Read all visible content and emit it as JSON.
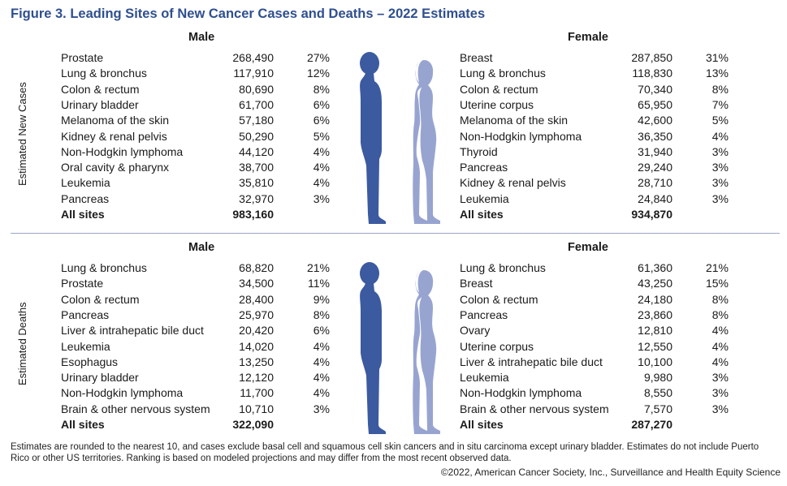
{
  "title": "Figure 3. Leading Sites of New Cancer Cases and Deaths – 2022 Estimates",
  "colors": {
    "male": "#3c5a9f",
    "female": "#98a4d0",
    "title": "#2f4f8f"
  },
  "chart_data": [
    {
      "type": "table",
      "label": "Estimated New Cases",
      "male": {
        "header": "Male",
        "rows": [
          {
            "site": "Prostate",
            "count": "268,490",
            "pct": "27%"
          },
          {
            "site": "Lung & bronchus",
            "count": "117,910",
            "pct": "12%"
          },
          {
            "site": "Colon & rectum",
            "count": "80,690",
            "pct": "8%"
          },
          {
            "site": "Urinary bladder",
            "count": "61,700",
            "pct": "6%"
          },
          {
            "site": "Melanoma of the skin",
            "count": "57,180",
            "pct": "6%"
          },
          {
            "site": "Kidney & renal pelvis",
            "count": "50,290",
            "pct": "5%"
          },
          {
            "site": "Non-Hodgkin lymphoma",
            "count": "44,120",
            "pct": "4%"
          },
          {
            "site": "Oral cavity & pharynx",
            "count": "38,700",
            "pct": "4%"
          },
          {
            "site": "Leukemia",
            "count": "35,810",
            "pct": "4%"
          },
          {
            "site": "Pancreas",
            "count": "32,970",
            "pct": "3%"
          }
        ],
        "total": {
          "site": "All sites",
          "count": "983,160"
        }
      },
      "female": {
        "header": "Female",
        "rows": [
          {
            "site": "Breast",
            "count": "287,850",
            "pct": "31%"
          },
          {
            "site": "Lung & bronchus",
            "count": "118,830",
            "pct": "13%"
          },
          {
            "site": "Colon & rectum",
            "count": "70,340",
            "pct": "8%"
          },
          {
            "site": "Uterine corpus",
            "count": "65,950",
            "pct": "7%"
          },
          {
            "site": "Melanoma of the skin",
            "count": "42,600",
            "pct": "5%"
          },
          {
            "site": "Non-Hodgkin lymphoma",
            "count": "36,350",
            "pct": "4%"
          },
          {
            "site": "Thyroid",
            "count": "31,940",
            "pct": "3%"
          },
          {
            "site": "Pancreas",
            "count": "29,240",
            "pct": "3%"
          },
          {
            "site": "Kidney & renal pelvis",
            "count": "28,710",
            "pct": "3%"
          },
          {
            "site": "Leukemia",
            "count": "24,840",
            "pct": "3%"
          }
        ],
        "total": {
          "site": "All sites",
          "count": "934,870"
        }
      }
    },
    {
      "type": "table",
      "label": "Estimated Deaths",
      "male": {
        "header": "Male",
        "rows": [
          {
            "site": "Lung & bronchus",
            "count": "68,820",
            "pct": "21%"
          },
          {
            "site": "Prostate",
            "count": "34,500",
            "pct": "11%"
          },
          {
            "site": "Colon & rectum",
            "count": "28,400",
            "pct": "9%"
          },
          {
            "site": "Pancreas",
            "count": "25,970",
            "pct": "8%"
          },
          {
            "site": "Liver & intrahepatic bile duct",
            "count": "20,420",
            "pct": "6%"
          },
          {
            "site": "Leukemia",
            "count": "14,020",
            "pct": "4%"
          },
          {
            "site": "Esophagus",
            "count": "13,250",
            "pct": "4%"
          },
          {
            "site": "Urinary bladder",
            "count": "12,120",
            "pct": "4%"
          },
          {
            "site": "Non-Hodgkin lymphoma",
            "count": "11,700",
            "pct": "4%"
          },
          {
            "site": "Brain & other nervous system",
            "count": "10,710",
            "pct": "3%"
          }
        ],
        "total": {
          "site": "All sites",
          "count": "322,090"
        }
      },
      "female": {
        "header": "Female",
        "rows": [
          {
            "site": "Lung & bronchus",
            "count": "61,360",
            "pct": "21%"
          },
          {
            "site": "Breast",
            "count": "43,250",
            "pct": "15%"
          },
          {
            "site": "Colon & rectum",
            "count": "24,180",
            "pct": "8%"
          },
          {
            "site": "Pancreas",
            "count": "23,860",
            "pct": "8%"
          },
          {
            "site": "Ovary",
            "count": "12,810",
            "pct": "4%"
          },
          {
            "site": "Uterine corpus",
            "count": "12,550",
            "pct": "4%"
          },
          {
            "site": "Liver & intrahepatic bile duct",
            "count": "10,100",
            "pct": "4%"
          },
          {
            "site": "Leukemia",
            "count": "9,980",
            "pct": "3%"
          },
          {
            "site": "Non-Hodgkin lymphoma",
            "count": "8,550",
            "pct": "3%"
          },
          {
            "site": "Brain & other nervous system",
            "count": "7,570",
            "pct": "3%"
          }
        ],
        "total": {
          "site": "All sites",
          "count": "287,270"
        }
      }
    }
  ],
  "footnote": "Estimates are rounded to the nearest 10, and cases exclude basal cell and squamous cell skin cancers and in situ carcinoma except urinary bladder. Estimates do not include Puerto Rico or other US territories. Ranking is based on modeled projections and may differ from the most recent observed data.",
  "copyright": "©2022, American Cancer Society, Inc., Surveillance and Health Equity Science"
}
